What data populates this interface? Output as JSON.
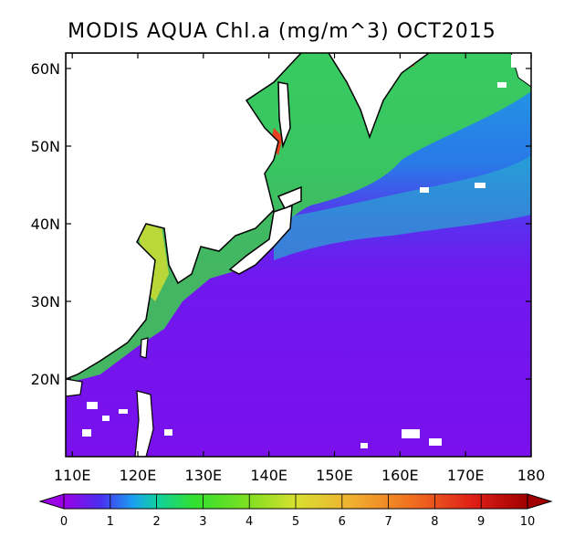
{
  "title": "MODIS AQUA Chl.a (mg/m^3) OCT2015",
  "map": {
    "lon_range": [
      109,
      180
    ],
    "lat_range": [
      10,
      62
    ],
    "lon_ticks": [
      "110E",
      "120E",
      "130E",
      "140E",
      "150E",
      "160E",
      "170E",
      "180"
    ],
    "lat_ticks": [
      "20N",
      "30N",
      "40N",
      "50N",
      "60N"
    ],
    "land_color": "#ffffff",
    "coast_color": "#000000"
  },
  "colorbar": {
    "labels": [
      "0",
      "1",
      "2",
      "3",
      "4",
      "5",
      "6",
      "7",
      "8",
      "9",
      "10"
    ],
    "min": 0,
    "max": 10,
    "colors": [
      "#9b00e6",
      "#6a1bf0",
      "#3e40f2",
      "#1d8cf2",
      "#10c0c8",
      "#20d060",
      "#40e020",
      "#90e020",
      "#d0e030",
      "#f0c030",
      "#f09020",
      "#e85020",
      "#d01818",
      "#a00000"
    ]
  }
}
